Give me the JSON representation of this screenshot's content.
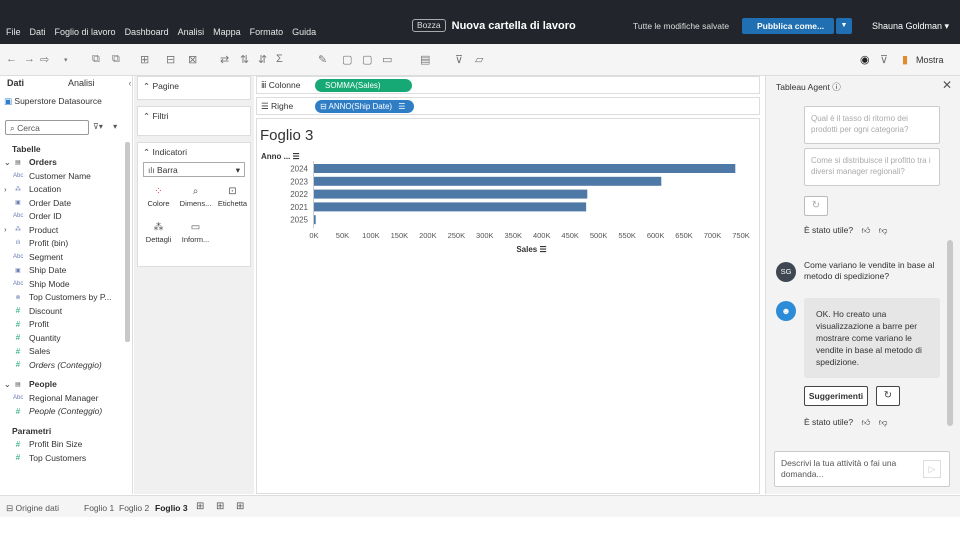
{
  "menu": [
    "File",
    "Dati",
    "Foglio di lavoro",
    "Dashboard",
    "Analisi",
    "Mappa",
    "Formato",
    "Guida"
  ],
  "header": {
    "draft_badge": "Bozza",
    "title": "Nuova cartella di lavoro",
    "save_status": "Tutte le modifiche salvate",
    "publish_label": "Pubblica come...",
    "user_name": "Shauna Goldman ▾"
  },
  "toolbar": {
    "show_me_label": "Mostra"
  },
  "data_pane": {
    "tab_data": "Dati",
    "tab_analytics": "Analisi",
    "datasource": "Superstore Datasource",
    "search_placeholder": "Cerca",
    "section_tables": "Tabelle",
    "fields": [
      {
        "kind": "table",
        "label": "Orders",
        "icon": "table-icon"
      },
      {
        "kind": "dim",
        "label": "Customer Name",
        "icon": "Abc"
      },
      {
        "kind": "hier",
        "label": "Location",
        "icon": "hierarchy-icon"
      },
      {
        "kind": "dim",
        "label": "Order Date",
        "icon": "calendar-icon"
      },
      {
        "kind": "dim",
        "label": "Order ID",
        "icon": "Abc"
      },
      {
        "kind": "hier",
        "label": "Product",
        "icon": "hierarchy-icon"
      },
      {
        "kind": "dim",
        "label": "Profit (bin)",
        "icon": "bin-icon"
      },
      {
        "kind": "dim",
        "label": "Segment",
        "icon": "Abc"
      },
      {
        "kind": "dim",
        "label": "Ship Date",
        "icon": "calendar-icon"
      },
      {
        "kind": "dim",
        "label": "Ship Mode",
        "icon": "Abc"
      },
      {
        "kind": "dim",
        "label": "Top Customers by P...",
        "icon": "set-icon"
      },
      {
        "kind": "measure",
        "label": "Discount",
        "icon": "#"
      },
      {
        "kind": "measure",
        "label": "Profit",
        "icon": "#"
      },
      {
        "kind": "measure",
        "label": "Quantity",
        "icon": "#"
      },
      {
        "kind": "measure",
        "label": "Sales",
        "icon": "#"
      },
      {
        "kind": "measure-italic",
        "label": "Orders (Conteggio)",
        "icon": "#"
      },
      {
        "kind": "table",
        "label": "People",
        "icon": "table-icon"
      },
      {
        "kind": "dim",
        "label": "Regional Manager",
        "icon": "Abc"
      },
      {
        "kind": "measure-italic",
        "label": "People (Conteggio)",
        "icon": "#"
      }
    ],
    "section_params": "Parametri",
    "params": [
      "Profit Bin Size",
      "Top Customers"
    ]
  },
  "cards": {
    "pages": "Pagine",
    "filters": "Filtri",
    "marks": "Indicatori",
    "mark_type": "Barra",
    "mark_buttons": [
      "Colore",
      "Dimens...",
      "Etichetta",
      "Dettagli",
      "Inform..."
    ]
  },
  "shelves": {
    "columns_label": "Colonne",
    "columns_pill": "SOMMA(Sales)",
    "rows_label": "Righe",
    "rows_pill": "ANNO(Ship Date)"
  },
  "sheet": {
    "title": "Foglio 3"
  },
  "chart_data": {
    "type": "bar",
    "orientation": "horizontal",
    "ylabel": "Anno ...",
    "xlabel": "Sales",
    "categories": [
      "2024",
      "2023",
      "2022",
      "2021",
      "2025"
    ],
    "values": [
      740000,
      610000,
      480000,
      478000,
      3000
    ],
    "xlim": [
      0,
      750000
    ],
    "xticks": [
      "0K",
      "50K",
      "100K",
      "150K",
      "200K",
      "250K",
      "300K",
      "350K",
      "400K",
      "450K",
      "500K",
      "550K",
      "600K",
      "650K",
      "700K",
      "750K"
    ],
    "bar_color": "#4e79a7",
    "grid": false
  },
  "agent": {
    "title": "Tableau Agent ⓘ",
    "suggestion_1": "Qual è il tasso di ritorno dei prodotti per ogni categoria?",
    "suggestion_2": "Come si distribuisce il profitto tra i diversi manager regionali?",
    "useful_label": "È stato utile?",
    "user_initials": "SG",
    "user_message": "Come variano le vendite in base al metodo di spedizione?",
    "bot_message": "OK. Ho creato una visualizzazione a barre per mostrare come variano le vendite in base al metodo di spedizione.",
    "suggestions_button": "Suggerimenti",
    "input_placeholder": "Descrivi la tua attività o fai una domanda..."
  },
  "bottom_tabs": {
    "data_source": "Origine dati",
    "sheets": [
      "Foglio 1",
      "Foglio 2",
      "Foglio 3"
    ],
    "active": "Foglio 3"
  }
}
